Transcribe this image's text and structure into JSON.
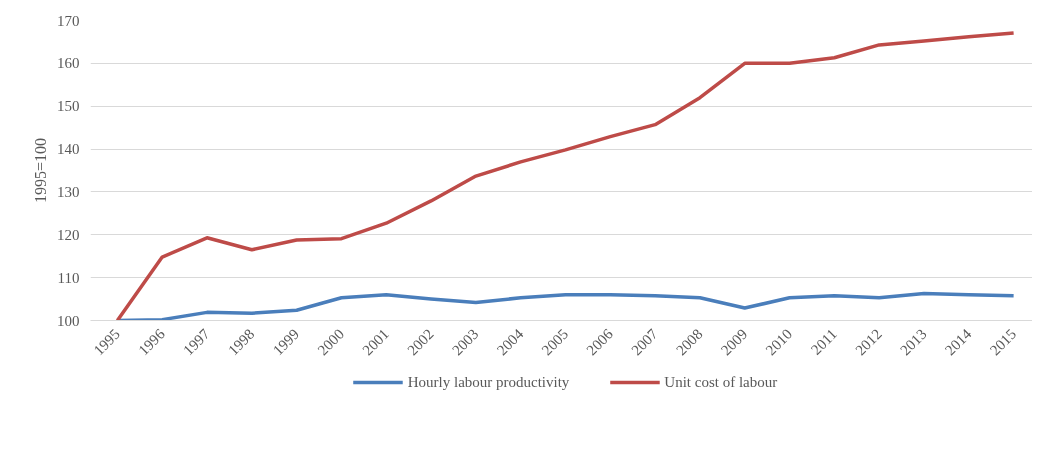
{
  "chart_data": {
    "type": "line",
    "ylabel": "1995=100",
    "categories": [
      "1995",
      "1996",
      "1997",
      "1998",
      "1999",
      "2000",
      "2001",
      "2002",
      "2003",
      "2004",
      "2005",
      "2006",
      "2007",
      "2008",
      "2009",
      "2010",
      "2011",
      "2012",
      "2013",
      "2014",
      "2015"
    ],
    "series": [
      {
        "name": "Hourly labour productivity",
        "color": "#4a7ebb",
        "values": [
          100,
          100.2,
          101.9,
          101.7,
          102.4,
          105.3,
          106.0,
          105.0,
          104.2,
          105.3,
          106.0,
          106.0,
          105.8,
          105.3,
          102.9,
          105.3,
          105.8,
          105.3,
          106.3,
          106.0,
          105.8
        ]
      },
      {
        "name": "Unit cost of labour",
        "color": "#be4b48",
        "values": [
          100,
          114.8,
          119.3,
          116.5,
          118.8,
          119.1,
          122.7,
          127.9,
          133.7,
          137.0,
          139.8,
          142.9,
          145.7,
          152.0,
          160.0,
          160.0,
          161.3,
          164.3,
          165.2,
          166.2,
          167.1
        ]
      }
    ],
    "ylim": [
      100,
      170
    ],
    "yticks": [
      100,
      110,
      120,
      130,
      140,
      150,
      160,
      170
    ],
    "grid": "y",
    "legend": "bottom",
    "marker": "none",
    "line_style": "solid"
  }
}
